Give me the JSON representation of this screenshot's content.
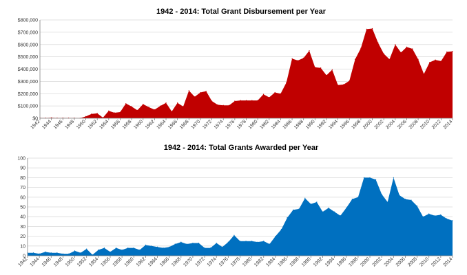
{
  "chart_data": [
    {
      "type": "area",
      "title": "1942 - 2014: Total Grant Disbursement per Year",
      "xlabel": "",
      "ylabel": "",
      "x": [
        1942,
        1943,
        1944,
        1945,
        1946,
        1947,
        1948,
        1949,
        1950,
        1951,
        1952,
        1953,
        1954,
        1955,
        1956,
        1957,
        1958,
        1959,
        1960,
        1961,
        1962,
        1963,
        1964,
        1965,
        1966,
        1967,
        1968,
        1969,
        1970,
        1971,
        1972,
        1973,
        1974,
        1975,
        1976,
        1977,
        1978,
        1979,
        1980,
        1981,
        1982,
        1983,
        1984,
        1985,
        1986,
        1987,
        1988,
        1989,
        1990,
        1991,
        1992,
        1993,
        1994,
        1995,
        1996,
        1997,
        1998,
        1999,
        2000,
        2001,
        2002,
        2003,
        2004,
        2005,
        2006,
        2007,
        2008,
        2009,
        2010,
        2011,
        2012,
        2013,
        2014
      ],
      "xticks": [
        "1942",
        "1944",
        "1946",
        "1948",
        "1950",
        "1952",
        "1954",
        "1956",
        "1958",
        "1960",
        "1962",
        "1964",
        "1966",
        "1968",
        "1970",
        "1972",
        "1974",
        "1976",
        "1978",
        "1980",
        "1982",
        "1984",
        "1986",
        "1988",
        "1990",
        "1992",
        "1994",
        "1996",
        "1998",
        "2000",
        "2002",
        "2004",
        "2006",
        "2008",
        "2010",
        "2012",
        "2014"
      ],
      "yticks": [
        "$0",
        "$100,000",
        "$200,000",
        "$300,000",
        "$400,000",
        "$500,000",
        "$600,000",
        "$700,000",
        "$800,000"
      ],
      "ylim": [
        0,
        800000
      ],
      "grid": true,
      "color": "#c00000",
      "series": [
        {
          "values": [
            3000,
            2000,
            4000,
            2000,
            3000,
            2000,
            2000,
            1000,
            15000,
            35000,
            40000,
            5000,
            60000,
            45000,
            50000,
            120000,
            95000,
            65000,
            115000,
            90000,
            70000,
            100000,
            125000,
            55000,
            125000,
            95000,
            225000,
            175000,
            210000,
            220000,
            140000,
            110000,
            105000,
            105000,
            140000,
            145000,
            145000,
            145000,
            145000,
            195000,
            170000,
            210000,
            200000,
            290000,
            485000,
            470000,
            490000,
            550000,
            415000,
            410000,
            350000,
            395000,
            270000,
            275000,
            305000,
            480000,
            570000,
            725000,
            730000,
            615000,
            525000,
            480000,
            600000,
            535000,
            580000,
            565000,
            480000,
            360000,
            455000,
            475000,
            465000,
            540000,
            545000
          ]
        }
      ]
    },
    {
      "type": "area",
      "title": "1942 - 2014: Total Grants Awarded per Year",
      "xlabel": "",
      "ylabel": "",
      "x": [
        1942,
        1943,
        1944,
        1945,
        1946,
        1947,
        1948,
        1949,
        1950,
        1951,
        1952,
        1953,
        1954,
        1955,
        1956,
        1957,
        1958,
        1959,
        1960,
        1961,
        1962,
        1963,
        1964,
        1965,
        1966,
        1967,
        1968,
        1969,
        1970,
        1971,
        1972,
        1973,
        1974,
        1975,
        1976,
        1977,
        1978,
        1979,
        1980,
        1981,
        1982,
        1983,
        1984,
        1985,
        1986,
        1987,
        1988,
        1989,
        1990,
        1991,
        1992,
        1993,
        1994,
        1995,
        1996,
        1997,
        1998,
        1999,
        2000,
        2001,
        2002,
        2003,
        2004,
        2005,
        2006,
        2007,
        2008,
        2009,
        2010,
        2011,
        2012,
        2013,
        2014
      ],
      "xticks": [
        "1942",
        "1944",
        "1946",
        "1948",
        "1950",
        "1952",
        "1954",
        "1956",
        "1958",
        "1960",
        "1962",
        "1964",
        "1966",
        "1968",
        "1970",
        "1972",
        "1974",
        "1976",
        "1978",
        "1980",
        "1982",
        "1984",
        "1986",
        "1988",
        "1990",
        "1992",
        "1994",
        "1996",
        "1998",
        "2000",
        "2002",
        "2004",
        "2006",
        "2008",
        "2010",
        "2012",
        "2014"
      ],
      "yticks": [
        "0",
        "10",
        "20",
        "30",
        "40",
        "50",
        "60",
        "70",
        "80",
        "90",
        "100"
      ],
      "ylim": [
        0,
        100
      ],
      "grid": true,
      "color": "#0070c0",
      "series": [
        {
          "values": [
            3,
            3,
            2,
            4,
            3,
            3,
            2,
            2,
            5,
            3,
            7,
            1,
            6,
            8,
            4,
            8,
            6,
            8,
            8,
            6,
            11,
            10,
            9,
            8,
            9,
            12,
            14,
            12,
            13,
            13,
            8,
            8,
            13,
            9,
            14,
            21,
            15,
            15,
            15,
            14,
            15,
            12,
            20,
            27,
            39,
            47,
            48,
            59,
            53,
            55,
            45,
            49,
            45,
            41,
            49,
            58,
            60,
            80,
            80,
            78,
            63,
            55,
            80,
            62,
            58,
            57,
            51,
            40,
            43,
            41,
            42,
            38,
            36
          ]
        }
      ]
    }
  ]
}
